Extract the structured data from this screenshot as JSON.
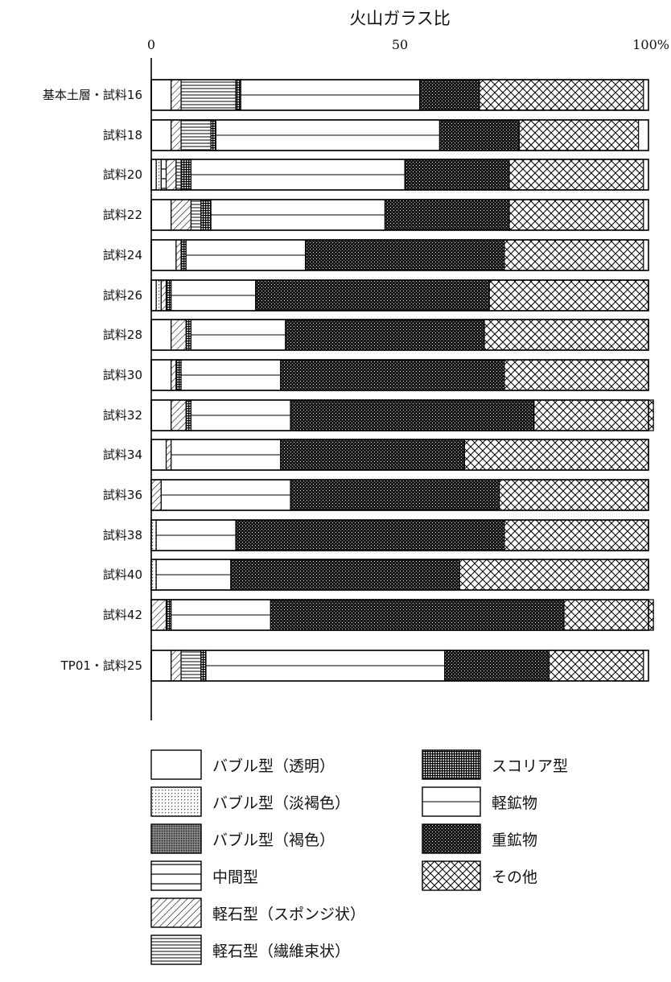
{
  "chart_data": {
    "type": "bar",
    "orientation": "horizontal",
    "stacked": true,
    "title": "火山ガラス比",
    "x_ticks": [
      "0",
      "50",
      "100%"
    ],
    "xlim": [
      0,
      100
    ],
    "grid": false,
    "legend_placement": "bottom",
    "categories": [
      "基本土層・試料16",
      "試料18",
      "試料20",
      "試料22",
      "試料24",
      "試料26",
      "試料28",
      "試料30",
      "試料32",
      "試料34",
      "試料36",
      "試料38",
      "試料40",
      "試料42",
      "TP01・試料25"
    ],
    "series": [
      {
        "name": "バブル型（透明）",
        "pattern": "blank",
        "values": [
          4,
          4,
          1,
          4,
          5,
          1,
          4,
          4,
          4,
          3,
          0,
          0,
          0,
          0,
          4
        ]
      },
      {
        "name": "バブル型（淡褐色）",
        "pattern": "dots-light",
        "values": [
          0,
          0,
          1,
          0,
          0,
          1,
          0,
          0,
          0,
          0,
          0,
          1,
          1,
          0,
          0
        ]
      },
      {
        "name": "バブル型（褐色）",
        "pattern": "dots-dense",
        "values": [
          0,
          0,
          0,
          0,
          0,
          0,
          0,
          0,
          0,
          0,
          0,
          0,
          0,
          0,
          0
        ]
      },
      {
        "name": "中間型",
        "pattern": "hlines-wide",
        "values": [
          0,
          0,
          1,
          0,
          0,
          0,
          0,
          0,
          0,
          0,
          0,
          0,
          0,
          0,
          0
        ]
      },
      {
        "name": "軽石型（スポンジ状）",
        "pattern": "diagonal",
        "values": [
          2,
          2,
          2,
          4,
          1,
          1,
          3,
          1,
          3,
          1,
          2,
          0,
          0,
          3,
          2
        ]
      },
      {
        "name": "軽石型（繊維束状）",
        "pattern": "hlines-dense",
        "values": [
          11,
          6,
          1,
          2,
          0,
          0,
          0,
          0,
          0,
          0,
          0,
          0,
          0,
          0,
          4
        ]
      },
      {
        "name": "スコリア型",
        "pattern": "grid",
        "values": [
          1,
          1,
          2,
          2,
          1,
          1,
          1,
          1,
          1,
          0,
          0,
          0,
          0,
          1,
          1
        ]
      },
      {
        "name": "軽鉱物",
        "pattern": "blank-line",
        "values": [
          36,
          45,
          43,
          35,
          24,
          17,
          19,
          20,
          20,
          22,
          26,
          16,
          15,
          20,
          48
        ]
      },
      {
        "name": "重鉱物",
        "pattern": "heavy",
        "values": [
          12,
          16,
          21,
          25,
          40,
          47,
          40,
          45,
          49,
          37,
          42,
          54,
          46,
          59,
          21
        ]
      },
      {
        "name": "その他",
        "pattern": "crosshatch",
        "values": [
          33,
          24,
          27,
          27,
          28,
          32,
          33,
          29,
          24,
          37,
          30,
          29,
          38,
          18,
          19
        ]
      }
    ]
  }
}
